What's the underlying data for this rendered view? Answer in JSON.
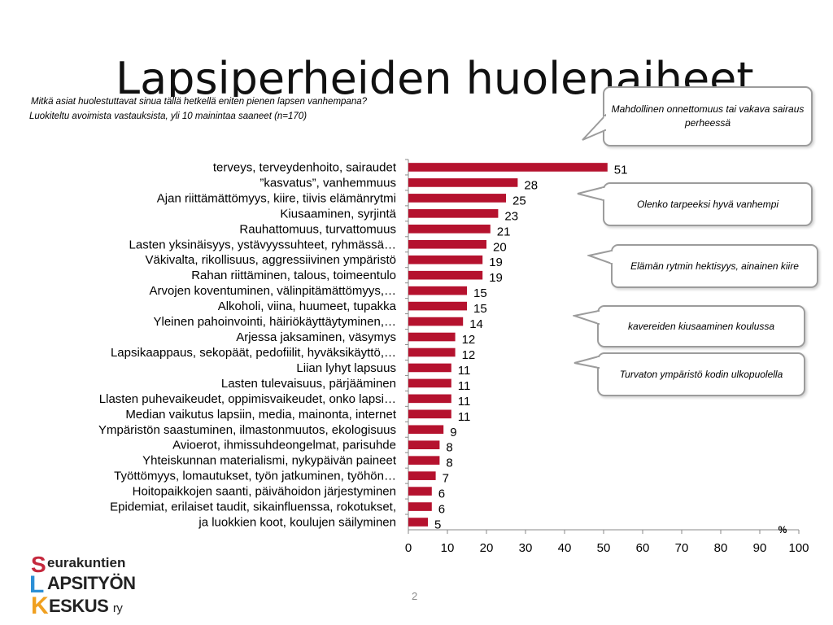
{
  "slide": {
    "title": "Lapsiperheiden huolenaiheet",
    "question": "Mitkä asiat huolestuttavat sinua tällä hetkellä eniten pienen lapsen vanhempana?",
    "subtitle": "Luokiteltu avoimista vastauksista, yli 10 mainintaa saaneet (n=170)",
    "page_number": "2"
  },
  "callouts": [
    "Mahdollinen onnettomuus tai vakava sairaus perheessä",
    "Olenko tarpeeksi hyvä vanhempi",
    "Elämän rytmin hektisyys, ainainen kiire",
    "kavereiden kiusaaminen koulussa",
    "Turvaton ympäristö kodin ulkopuolella"
  ],
  "logo": {
    "line1_initial": "S",
    "line1_rest": "eurakuntien",
    "line2_initial": "L",
    "line2_rest": "APSITYÖN",
    "line3_initial": "K",
    "line3_rest": "ESKUS",
    "line3_suffix": "ry",
    "colors": {
      "s": "#c5283d",
      "l": "#2c8fd6",
      "k": "#f0a020"
    }
  },
  "chart_data": {
    "type": "bar",
    "orientation": "horizontal",
    "categories": [
      "terveys, terveydenhoito, sairaudet",
      "”kasvatus”, vanhemmuus",
      "Ajan riittämättömyys, kiire, tiivis elämänrytmi",
      "Kiusaaminen, syrjintä",
      "Rauhattomuus, turvattomuus",
      "Lasten yksinäisyys, ystävyyssuhteet, ryhmässä…",
      "Väkivalta, rikollisuus, aggressiivinen ympäristö",
      "Rahan riittäminen, talous, toimeentulo",
      "Arvojen koventuminen,  välinpitämättömyys,…",
      "Alkoholi, viina, huumeet, tupakka",
      "Yleinen pahoinvointi, häiriökäyttäytyminen,…",
      "Arjessa jaksaminen, väsymys",
      "Lapsikaappaus, sekopäät, pedofiilit, hyväksikäyttö,…",
      "Liian lyhyt lapsuus",
      "Lasten tulevaisuus, pärjääminen",
      "Llasten puhevaikeudet, oppimisvaikeudet, onko lapsi…",
      "Median vaikutus lapsiin, media, mainonta, internet",
      "Ympäristön saastuminen, ilmastonmuutos, ekologisuus",
      "Avioerot, ihmissuhdeongelmat, parisuhde",
      "Yhteiskunnan materialismi, nykypäivän paineet",
      "Työttömyys, lomautukset, työn jatkuminen, työhön…",
      "Hoitopaikkojen saanti, päivähoidon järjestyminen",
      "Epidemiat, erilaiset taudit, sikainfluenssa, rokotukset,",
      "ja luokkien koot, koulujen säilyminen"
    ],
    "values": [
      51,
      28,
      25,
      23,
      21,
      20,
      19,
      19,
      15,
      15,
      14,
      12,
      12,
      11,
      11,
      11,
      11,
      9,
      8,
      8,
      7,
      6,
      6,
      5
    ],
    "data_labels": [
      "51",
      "28",
      "25",
      "23",
      "21",
      "20",
      "19",
      "19",
      "15",
      "15",
      "14",
      "12",
      "12",
      "11",
      "11",
      "11",
      "11",
      "9",
      "8",
      "8",
      "7",
      "6",
      "6",
      "5"
    ],
    "xlim": [
      0,
      100
    ],
    "x_ticks": [
      0,
      10,
      20,
      30,
      40,
      50,
      60,
      70,
      80,
      90,
      100
    ],
    "x_tick_labels": [
      "0",
      "10",
      "20",
      "30",
      "40",
      "50",
      "60",
      "70",
      "80",
      "90",
      "100"
    ],
    "unit_label": "%",
    "bar_color": "#b5122e",
    "grid": false
  }
}
